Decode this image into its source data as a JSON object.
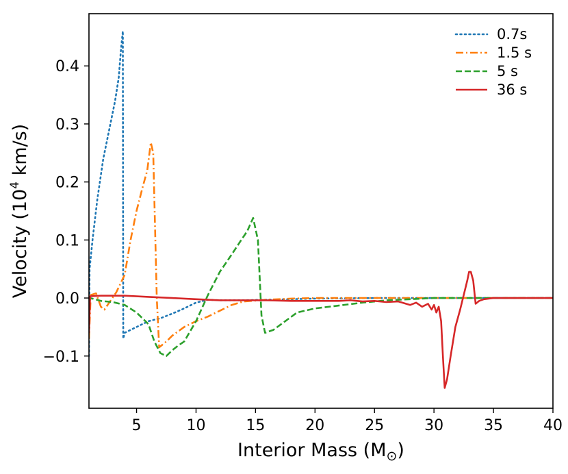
{
  "chart_data": {
    "type": "line",
    "xlabel": "Interior Mass (M",
    "xlabel_symbol": "⊙",
    "xlabel_close": ")",
    "ylabel": "Velocity (10",
    "ylabel_exp": "4",
    "ylabel_unit": " km/s)",
    "xlim": [
      1.0,
      40.0
    ],
    "ylim": [
      -0.19,
      0.49
    ],
    "xticks": [
      5,
      10,
      15,
      20,
      25,
      30,
      35,
      40
    ],
    "yticks": [
      -0.1,
      0.0,
      0.1,
      0.2,
      0.3,
      0.4
    ],
    "ytick_labels": [
      "−0.1",
      "0.0",
      "0.1",
      "0.2",
      "0.3",
      "0.4"
    ],
    "grid": false,
    "legend_position": "top-right",
    "series": [
      {
        "name": "0.7s",
        "color": "#1f77b4",
        "style": "dotted",
        "points": [
          [
            1.0,
            -0.1
          ],
          [
            1.05,
            0.05
          ],
          [
            1.3,
            0.1
          ],
          [
            1.7,
            0.17
          ],
          [
            2.2,
            0.24
          ],
          [
            2.7,
            0.29
          ],
          [
            3.2,
            0.34
          ],
          [
            3.5,
            0.38
          ],
          [
            3.7,
            0.43
          ],
          [
            3.85,
            0.46
          ],
          [
            3.88,
            -0.07
          ],
          [
            4.0,
            -0.06
          ],
          [
            5.0,
            -0.05
          ],
          [
            6.0,
            -0.04
          ],
          [
            7.0,
            -0.035
          ],
          [
            8.0,
            -0.027
          ],
          [
            9.0,
            -0.018
          ],
          [
            10.0,
            -0.008
          ],
          [
            11.0,
            -0.003
          ],
          [
            12.0,
            -0.004
          ],
          [
            14.0,
            -0.004
          ],
          [
            16.0,
            -0.003
          ],
          [
            18.0,
            -0.002
          ],
          [
            20.0,
            -0.001
          ],
          [
            25.0,
            0.0
          ],
          [
            30.0,
            0.0
          ],
          [
            35.0,
            0.0
          ],
          [
            40.0,
            0.0
          ]
        ]
      },
      {
        "name": "1.5 s",
        "color": "#ff7f0e",
        "style": "dashdot",
        "points": [
          [
            1.0,
            -0.07
          ],
          [
            1.15,
            0.005
          ],
          [
            1.6,
            0.008
          ],
          [
            2.0,
            -0.015
          ],
          [
            2.3,
            -0.02
          ],
          [
            2.8,
            -0.005
          ],
          [
            3.3,
            0.01
          ],
          [
            4.0,
            0.04
          ],
          [
            4.5,
            0.1
          ],
          [
            5.0,
            0.15
          ],
          [
            5.5,
            0.19
          ],
          [
            5.9,
            0.22
          ],
          [
            6.2,
            0.268
          ],
          [
            6.4,
            0.25
          ],
          [
            6.7,
            0.0
          ],
          [
            6.9,
            -0.085
          ],
          [
            7.5,
            -0.075
          ],
          [
            8.0,
            -0.065
          ],
          [
            9.0,
            -0.05
          ],
          [
            10.0,
            -0.04
          ],
          [
            11.0,
            -0.032
          ],
          [
            12.0,
            -0.022
          ],
          [
            13.0,
            -0.012
          ],
          [
            14.0,
            -0.006
          ],
          [
            16.0,
            -0.003
          ],
          [
            18.0,
            -0.001
          ],
          [
            20.0,
            0.0
          ],
          [
            25.0,
            0.0
          ],
          [
            30.0,
            0.0
          ],
          [
            35.0,
            0.0
          ],
          [
            40.0,
            0.0
          ]
        ]
      },
      {
        "name": "5 s",
        "color": "#2ca02c",
        "style": "dashed",
        "points": [
          [
            1.0,
            -0.02
          ],
          [
            1.1,
            0.0
          ],
          [
            2.0,
            -0.005
          ],
          [
            3.0,
            -0.007
          ],
          [
            4.0,
            -0.012
          ],
          [
            5.0,
            -0.025
          ],
          [
            6.0,
            -0.045
          ],
          [
            6.5,
            -0.075
          ],
          [
            7.0,
            -0.095
          ],
          [
            7.5,
            -0.1
          ],
          [
            8.0,
            -0.09
          ],
          [
            8.5,
            -0.082
          ],
          [
            9.0,
            -0.075
          ],
          [
            10.0,
            -0.04
          ],
          [
            11.0,
            0.005
          ],
          [
            12.0,
            0.045
          ],
          [
            13.0,
            0.075
          ],
          [
            13.8,
            0.1
          ],
          [
            14.3,
            0.115
          ],
          [
            14.8,
            0.138
          ],
          [
            15.2,
            0.1
          ],
          [
            15.5,
            -0.03
          ],
          [
            15.8,
            -0.06
          ],
          [
            16.5,
            -0.055
          ],
          [
            17.5,
            -0.04
          ],
          [
            18.5,
            -0.025
          ],
          [
            20.0,
            -0.018
          ],
          [
            22.0,
            -0.013
          ],
          [
            24.0,
            -0.008
          ],
          [
            26.0,
            -0.004
          ],
          [
            28.0,
            -0.002
          ],
          [
            30.0,
            0.0
          ],
          [
            35.0,
            0.0
          ],
          [
            40.0,
            0.0
          ]
        ]
      },
      {
        "name": "36 s",
        "color": "#d62728",
        "style": "solid",
        "points": [
          [
            1.0,
            -0.06
          ],
          [
            1.1,
            0.003
          ],
          [
            2.0,
            0.004
          ],
          [
            4.0,
            0.004
          ],
          [
            6.0,
            0.002
          ],
          [
            8.0,
            0.0
          ],
          [
            10.0,
            -0.002
          ],
          [
            12.0,
            -0.004
          ],
          [
            14.0,
            -0.004
          ],
          [
            16.0,
            -0.004
          ],
          [
            18.0,
            -0.005
          ],
          [
            20.0,
            -0.005
          ],
          [
            22.0,
            -0.005
          ],
          [
            23.0,
            -0.004
          ],
          [
            24.0,
            -0.006
          ],
          [
            25.0,
            -0.005
          ],
          [
            26.0,
            -0.007
          ],
          [
            27.0,
            -0.006
          ],
          [
            28.0,
            -0.012
          ],
          [
            28.5,
            -0.008
          ],
          [
            29.0,
            -0.015
          ],
          [
            29.5,
            -0.01
          ],
          [
            29.8,
            -0.02
          ],
          [
            30.0,
            -0.012
          ],
          [
            30.2,
            -0.025
          ],
          [
            30.4,
            -0.015
          ],
          [
            30.6,
            -0.04
          ],
          [
            30.75,
            -0.1
          ],
          [
            30.9,
            -0.155
          ],
          [
            31.1,
            -0.14
          ],
          [
            31.4,
            -0.1
          ],
          [
            31.8,
            -0.05
          ],
          [
            32.2,
            -0.02
          ],
          [
            32.5,
            0.005
          ],
          [
            32.8,
            0.03
          ],
          [
            32.95,
            0.045
          ],
          [
            33.1,
            0.045
          ],
          [
            33.3,
            0.03
          ],
          [
            33.5,
            -0.01
          ],
          [
            33.8,
            -0.005
          ],
          [
            34.2,
            -0.002
          ],
          [
            35.0,
            0.0
          ],
          [
            40.0,
            0.0
          ]
        ]
      }
    ]
  }
}
